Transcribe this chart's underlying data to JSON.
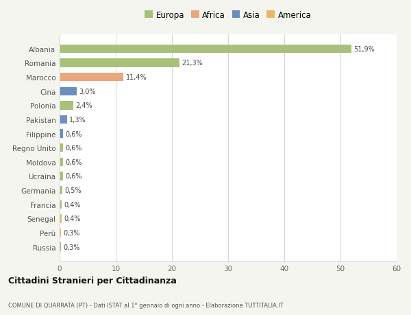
{
  "countries": [
    "Albania",
    "Romania",
    "Marocco",
    "Cina",
    "Polonia",
    "Pakistan",
    "Filippine",
    "Regno Unito",
    "Moldova",
    "Ucraina",
    "Germania",
    "Francia",
    "Senegal",
    "Perù",
    "Russia"
  ],
  "values": [
    51.9,
    21.3,
    11.4,
    3.0,
    2.4,
    1.3,
    0.6,
    0.6,
    0.6,
    0.6,
    0.5,
    0.4,
    0.4,
    0.3,
    0.3
  ],
  "labels": [
    "51,9%",
    "21,3%",
    "11,4%",
    "3,0%",
    "2,4%",
    "1,3%",
    "0,6%",
    "0,6%",
    "0,6%",
    "0,6%",
    "0,5%",
    "0,4%",
    "0,4%",
    "0,3%",
    "0,3%"
  ],
  "colors": [
    "#a8c07a",
    "#a8c07a",
    "#e8a87c",
    "#6b8ebf",
    "#a8c07a",
    "#7090c0",
    "#6b8ebf",
    "#a8c07a",
    "#a8c07a",
    "#a8c07a",
    "#a8c07a",
    "#a8c07a",
    "#e8b86a",
    "#e8b86a",
    "#a8c07a"
  ],
  "legend_labels": [
    "Europa",
    "Africa",
    "Asia",
    "America"
  ],
  "legend_colors": [
    "#a8c07a",
    "#e8a87c",
    "#6b8ebf",
    "#e8b86a"
  ],
  "xlim": [
    0,
    60
  ],
  "xticks": [
    0,
    10,
    20,
    30,
    40,
    50,
    60
  ],
  "title": "Cittadini Stranieri per Cittadinanza",
  "subtitle": "COMUNE DI QUARRATA (PT) - Dati ISTAT al 1° gennaio di ogni anno - Elaborazione TUTTITALIA.IT",
  "bg_color": "#f5f5f0",
  "bar_bg": "#ffffff"
}
